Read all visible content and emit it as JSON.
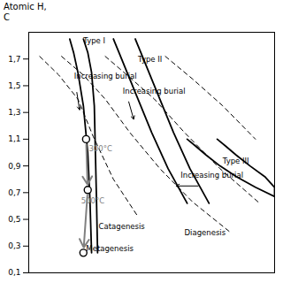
{
  "chart_data": {
    "type": "line",
    "background_color": "#ffffff",
    "ylabel": [
      "Atomic H,",
      "C"
    ],
    "xlim": [
      0.0,
      0.45
    ],
    "xticks": [],
    "ylim": [
      0.1,
      1.9
    ],
    "yticks": [
      {
        "value": 0.1,
        "label": "0,1"
      },
      {
        "value": 0.3,
        "label": "0,3"
      },
      {
        "value": 0.5,
        "label": "0,5"
      },
      {
        "value": 0.7,
        "label": "0,7"
      },
      {
        "value": 0.9,
        "label": "0,9"
      },
      {
        "value": 1.1,
        "label": "1,1"
      },
      {
        "value": 1.3,
        "label": "1,3"
      },
      {
        "value": 1.5,
        "label": "1,5"
      },
      {
        "value": 1.7,
        "label": "1,7"
      }
    ],
    "tick_labels": "y",
    "grid": false,
    "series": [
      {
        "type": "line",
        "color": "black",
        "line_style": "solid",
        "x": [
          0.075,
          0.082,
          0.09,
          0.1,
          0.108,
          0.112,
          0.115
        ],
        "values": [
          1.85,
          1.75,
          1.6,
          1.35,
          1.0,
          0.65,
          0.25
        ]
      },
      {
        "type": "line",
        "color": "black",
        "line_style": "solid",
        "x": [
          0.1,
          0.108,
          0.115,
          0.12,
          0.122,
          0.124,
          0.126
        ],
        "values": [
          1.85,
          1.75,
          1.6,
          1.35,
          1.0,
          0.65,
          0.25
        ]
      },
      {
        "type": "line",
        "color": "black",
        "line_style": "solid",
        "x": [
          0.155,
          0.165,
          0.18,
          0.2,
          0.225,
          0.255,
          0.29
        ],
        "values": [
          1.85,
          1.75,
          1.6,
          1.4,
          1.15,
          0.88,
          0.62
        ]
      },
      {
        "type": "line",
        "color": "black",
        "line_style": "solid",
        "x": [
          0.195,
          0.205,
          0.22,
          0.24,
          0.265,
          0.295,
          0.33
        ],
        "values": [
          1.85,
          1.75,
          1.6,
          1.4,
          1.15,
          0.88,
          0.62
        ]
      },
      {
        "type": "line",
        "color": "black",
        "line_style": "solid",
        "x": [
          0.29,
          0.305,
          0.325,
          0.35,
          0.38,
          0.415,
          0.45
        ],
        "values": [
          1.1,
          1.05,
          0.98,
          0.9,
          0.82,
          0.74,
          0.67
        ]
      },
      {
        "type": "line",
        "color": "black",
        "line_style": "solid",
        "x": [
          0.345,
          0.36,
          0.38,
          0.405,
          0.432,
          0.45,
          0.45
        ],
        "values": [
          1.1,
          1.05,
          0.98,
          0.9,
          0.82,
          0.74,
          0.67
        ]
      },
      {
        "type": "line",
        "color": "black",
        "line_style": "dashed",
        "x": [
          0.02,
          0.055,
          0.09,
          0.118,
          0.155,
          0.2
        ],
        "values": [
          1.72,
          1.58,
          1.4,
          1.12,
          0.8,
          0.52
        ]
      },
      {
        "type": "line",
        "color": "black",
        "line_style": "dashed",
        "x": [
          0.06,
          0.1,
          0.14,
          0.185,
          0.24,
          0.3,
          0.37
        ],
        "values": [
          1.72,
          1.58,
          1.4,
          1.15,
          0.88,
          0.63,
          0.4
        ]
      },
      {
        "type": "line",
        "color": "black",
        "line_style": "dashed",
        "x": [
          0.14,
          0.18,
          0.23,
          0.285,
          0.35,
          0.42
        ],
        "values": [
          1.72,
          1.58,
          1.4,
          1.15,
          0.88,
          0.63
        ]
      },
      {
        "type": "line",
        "color": "black",
        "line_style": "dashed",
        "x": [
          0.25,
          0.3,
          0.355,
          0.415
        ],
        "values": [
          1.72,
          1.55,
          1.35,
          1.1
        ]
      },
      {
        "type": "scatter",
        "color": "black",
        "marker": "circle",
        "x": [
          0.105,
          0.108,
          0.1
        ],
        "values": [
          1.1,
          0.72,
          0.25
        ]
      }
    ],
    "arrows": [
      {
        "from": [
          0.105,
          1.1
        ],
        "to": [
          0.108,
          0.72
        ],
        "color": "gray"
      },
      {
        "from": [
          0.108,
          0.72
        ],
        "to": [
          0.1,
          0.25
        ],
        "color": "gray"
      },
      {
        "from": [
          0.088,
          1.45
        ],
        "to": [
          0.093,
          1.32
        ],
        "color": "black"
      },
      {
        "from": [
          0.183,
          1.38
        ],
        "to": [
          0.192,
          1.25
        ],
        "color": "black"
      },
      {
        "from": [
          0.31,
          0.75
        ],
        "to": [
          0.27,
          0.75
        ],
        "color": "black"
      }
    ],
    "annotations": [
      {
        "text": "300°C",
        "x": 0.11,
        "y": 1.01,
        "color": "gray"
      },
      {
        "text": "500°C",
        "x": 0.096,
        "y": 0.62,
        "color": "gray"
      },
      {
        "text": "Metagenesis",
        "x": 0.105,
        "y": 0.26,
        "color": "black"
      },
      {
        "text": "Catagenesis",
        "x": 0.128,
        "y": 0.43,
        "color": "black"
      },
      {
        "text": "Diagenesis",
        "x": 0.285,
        "y": 0.38,
        "color": "black"
      },
      {
        "text": "Type I",
        "x": 0.1,
        "y": 1.82,
        "color": "black"
      },
      {
        "text": "Type II",
        "x": 0.2,
        "y": 1.68,
        "color": "black"
      },
      {
        "text": "Type III",
        "x": 0.355,
        "y": 0.92,
        "color": "black"
      },
      {
        "text": "Increasing burial",
        "x": 0.083,
        "y": 1.55,
        "color": "black"
      },
      {
        "text": "Increasing burial",
        "x": 0.172,
        "y": 1.44,
        "color": "black"
      },
      {
        "text": "Increasing burial",
        "x": 0.278,
        "y": 0.81,
        "color": "black"
      }
    ]
  }
}
